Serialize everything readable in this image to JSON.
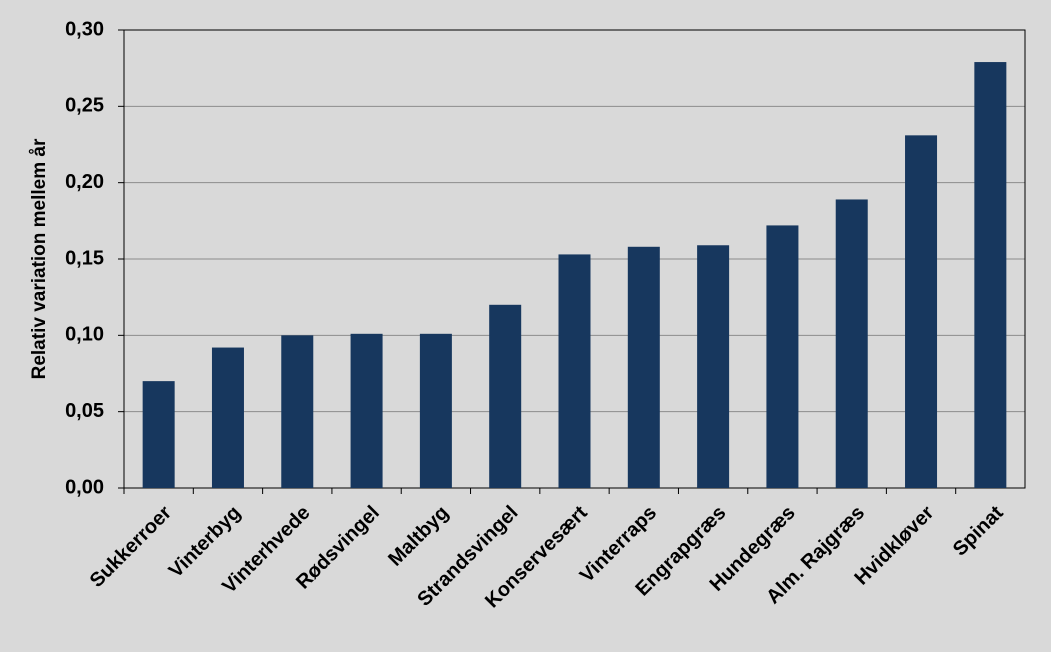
{
  "chart_data": {
    "type": "bar",
    "y_label": "Relativ variation mellem år",
    "categories": [
      "Sukkerroer",
      "Vinterbyg",
      "Vinterhvede",
      "Rødsvingel",
      "Maltbyg",
      "Strandsvingel",
      "Konservesært",
      "Vinterraps",
      "Engrapgræs",
      "Hundegræs",
      "Alm. Rajgræs",
      "Hvidkløver",
      "Spinat"
    ],
    "values": [
      0.07,
      0.092,
      0.1,
      0.101,
      0.101,
      0.12,
      0.153,
      0.158,
      0.159,
      0.172,
      0.189,
      0.231,
      0.279
    ],
    "color": "#17375e",
    "ylim": [
      0,
      0.3
    ],
    "yticks": [
      {
        "value": 0,
        "label": "0,00"
      },
      {
        "value": 0.05,
        "label": "0,05"
      },
      {
        "value": 0.1,
        "label": "0,10"
      },
      {
        "value": 0.15,
        "label": "0,15"
      },
      {
        "value": 0.2,
        "label": "0,20"
      },
      {
        "value": 0.25,
        "label": "0,25"
      },
      {
        "value": 0.3,
        "label": "0,30"
      }
    ],
    "grid": true
  }
}
